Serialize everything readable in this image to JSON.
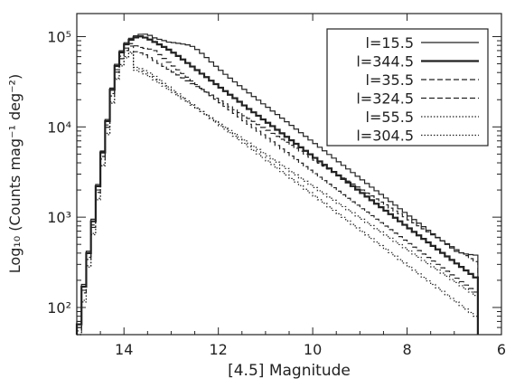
{
  "chart_data": {
    "type": "line",
    "step": true,
    "xlabel": "[4.5] Magnitude",
    "ylabel": "Log₁₀ (Counts mag⁻¹ deg⁻²)",
    "xlim": [
      15,
      6
    ],
    "ylim": [
      50,
      180000
    ],
    "yscale": "log",
    "xticks": [
      14,
      12,
      10,
      8,
      6
    ],
    "yticks": [
      {
        "value": 100,
        "label": "10²"
      },
      {
        "value": 1000,
        "label": "10³"
      },
      {
        "value": 10000,
        "label": "10⁴"
      },
      {
        "value": 100000,
        "label": "10⁵"
      }
    ],
    "legend_position": "top-right",
    "grid": false,
    "x": [
      15.0,
      14.9,
      14.8,
      14.7,
      14.6,
      14.5,
      14.4,
      14.3,
      14.2,
      14.1,
      14.0,
      13.9,
      13.8,
      13.7,
      13.6,
      13.5,
      13.4,
      13.3,
      13.2,
      13.1,
      13.0,
      12.9,
      12.8,
      12.7,
      12.6,
      12.5,
      12.4,
      12.3,
      12.2,
      12.1,
      12.0,
      11.9,
      11.8,
      11.7,
      11.6,
      11.5,
      11.4,
      11.3,
      11.2,
      11.1,
      11.0,
      10.9,
      10.8,
      10.7,
      10.6,
      10.5,
      10.4,
      10.3,
      10.2,
      10.1,
      10.0,
      9.9,
      9.8,
      9.7,
      9.6,
      9.5,
      9.4,
      9.3,
      9.2,
      9.1,
      9.0,
      8.9,
      8.8,
      8.7,
      8.6,
      8.5,
      8.4,
      8.3,
      8.2,
      8.1,
      8.0,
      7.9,
      7.8,
      7.7,
      7.6,
      7.5,
      7.4,
      7.3,
      7.2,
      7.1,
      7.0,
      6.9,
      6.8,
      6.7,
      6.6
    ],
    "series": [
      {
        "name": "l=15.5",
        "style": "solid",
        "width": 1.2,
        "values": [
          70,
          180,
          420,
          950,
          2300,
          5400,
          12100,
          26900,
          49400,
          69700,
          85700,
          95900,
          102000,
          106100,
          106400,
          103100,
          96900,
          93400,
          90300,
          86900,
          85800,
          84300,
          82800,
          81000,
          77900,
          71900,
          65200,
          58600,
          52400,
          47000,
          42300,
          38200,
          34700,
          31500,
          28600,
          26100,
          23800,
          21700,
          19800,
          18000,
          16500,
          15000,
          13700,
          12500,
          11400,
          10400,
          9450,
          8620,
          7860,
          7160,
          6530,
          5950,
          5430,
          4950,
          4510,
          4110,
          3750,
          3420,
          3120,
          2840,
          2590,
          2360,
          2150,
          1960,
          1790,
          1630,
          1490,
          1360,
          1240,
          1130,
          1030,
          941,
          859,
          785,
          717,
          655,
          598,
          546,
          499,
          456,
          419,
          402,
          391,
          385,
          380
        ]
      },
      {
        "name": "l=344.5",
        "style": "solid",
        "width": 2.2,
        "values": [
          65,
          170,
          400,
          900,
          2200,
          5200,
          11600,
          25800,
          47400,
          66900,
          82200,
          92200,
          98000,
          100500,
          97500,
          92800,
          87300,
          81900,
          76900,
          71800,
          66400,
          61000,
          55800,
          51000,
          46600,
          42600,
          38900,
          35600,
          32500,
          29800,
          27200,
          24900,
          22700,
          20800,
          19000,
          17300,
          15800,
          14500,
          13300,
          12100,
          11100,
          10200,
          9290,
          8490,
          7770,
          7110,
          6500,
          5940,
          5430,
          4970,
          4540,
          4150,
          3800,
          3470,
          3170,
          2900,
          2650,
          2420,
          2210,
          2020,
          1850,
          1690,
          1540,
          1410,
          1290,
          1180,
          1080,
          985,
          900,
          823,
          752,
          688,
          629,
          575,
          526,
          481,
          440,
          402,
          368,
          336,
          307,
          281,
          257,
          235,
          215
        ]
      },
      {
        "name": "l=35.5",
        "style": "dashed",
        "width": 1.2,
        "values": [
          60,
          155,
          360,
          820,
          2000,
          4700,
          10500,
          23400,
          43000,
          60700,
          74600,
          83600,
          79000,
          75900,
          74000,
          72700,
          70000,
          63200,
          57300,
          52000,
          47200,
          42900,
          39000,
          35500,
          32300,
          29400,
          26800,
          24400,
          22200,
          20300,
          18500,
          16900,
          15400,
          14100,
          12900,
          11700,
          10700,
          9800,
          8950,
          8180,
          7470,
          6820,
          6230,
          5690,
          5200,
          4750,
          4340,
          3970,
          3630,
          3320,
          3030,
          2770,
          2540,
          2320,
          2120,
          1940,
          1770,
          1620,
          1480,
          1360,
          1240,
          1140,
          1040,
          951,
          870,
          796,
          728,
          666,
          609,
          557,
          510,
          466,
          427,
          391,
          358,
          327,
          300,
          275,
          252,
          230,
          211,
          193,
          177,
          162,
          148
        ]
      },
      {
        "name": "l=324.5",
        "style": "dashed",
        "width": 1.2,
        "values": [
          55,
          145,
          340,
          770,
          1880,
          4400,
          9900,
          22000,
          40400,
          57000,
          70100,
          78600,
          68000,
          66100,
          62800,
          58400,
          54300,
          50400,
          46800,
          43500,
          40400,
          37600,
          34900,
          32400,
          30100,
          28000,
          26000,
          24200,
          22500,
          20800,
          19400,
          18000,
          16700,
          15500,
          14400,
          13300,
          12400,
          11500,
          10600,
          9870,
          9150,
          8480,
          7860,
          7290,
          6760,
          6260,
          5800,
          5380,
          4990,
          4620,
          4280,
          3970,
          3680,
          3410,
          3160,
          2930,
          2710,
          2510,
          2330,
          2160,
          2000,
          1850,
          1720,
          1590,
          1470,
          1370,
          1260,
          1170,
          1090,
          1010,
          934,
          866,
          802,
          743,
          689,
          638,
          591,
          548,
          508,
          471,
          436,
          404,
          375,
          347,
          322
        ]
      },
      {
        "name": "l=55.5",
        "style": "dotted",
        "width": 1.2,
        "values": [
          50,
          120,
          290,
          660,
          1620,
          3800,
          8500,
          18900,
          34700,
          49000,
          60200,
          67400,
          45600,
          44100,
          42000,
          39500,
          36300,
          33200,
          30300,
          27700,
          25300,
          23200,
          21200,
          19400,
          17700,
          16200,
          14800,
          13500,
          12400,
          11300,
          10300,
          9440,
          8630,
          7880,
          7200,
          6580,
          6020,
          5500,
          5020,
          4590,
          4200,
          3830,
          3500,
          3200,
          2930,
          2680,
          2450,
          2240,
          2040,
          1870,
          1710,
          1560,
          1430,
          1300,
          1190,
          1090,
          996,
          910,
          832,
          761,
          695,
          636,
          581,
          531,
          485,
          444,
          405,
          371,
          339,
          310,
          283,
          259,
          236,
          216,
          197,
          180,
          165,
          151,
          138,
          126,
          115,
          105,
          96,
          88,
          80
        ]
      },
      {
        "name": "l=304.5",
        "style": "dotted",
        "width": 1.2,
        "values": [
          48,
          115,
          280,
          640,
          1560,
          3700,
          8200,
          18300,
          33600,
          47400,
          58200,
          65200,
          42400,
          41000,
          38600,
          36100,
          33300,
          30700,
          28300,
          26100,
          24100,
          22200,
          20500,
          18900,
          17400,
          16100,
          14800,
          13700,
          12600,
          11600,
          10700,
          9890,
          9120,
          8420,
          7760,
          7160,
          6600,
          6090,
          5620,
          5180,
          4780,
          4410,
          4070,
          3750,
          3460,
          3190,
          2940,
          2710,
          2500,
          2310,
          2130,
          1960,
          1810,
          1670,
          1540,
          1420,
          1310,
          1210,
          1120,
          1030,
          949,
          876,
          808,
          745,
          687,
          634,
          585,
          539,
          497,
          459,
          423,
          390,
          360,
          332,
          306,
          282,
          261,
          240,
          222,
          204,
          189,
          174,
          160,
          148,
          136
        ]
      }
    ]
  }
}
